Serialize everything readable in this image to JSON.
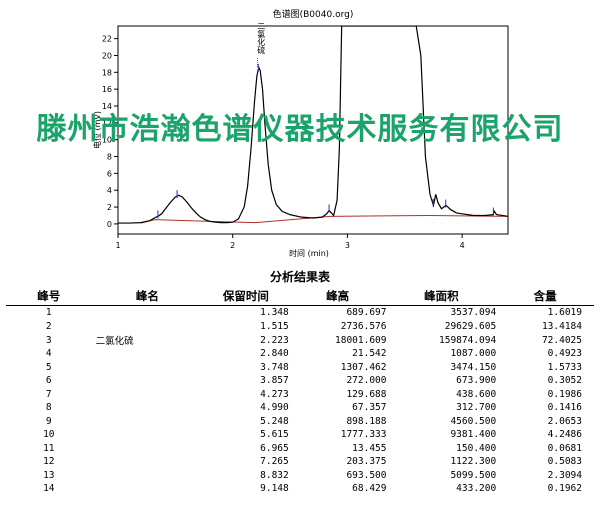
{
  "chart_data": {
    "type": "line",
    "title": "色谱图(B0040.org)",
    "xlabel": "时间 (min)",
    "ylabel": "电位 (mV)",
    "xlim": [
      1.0,
      4.4
    ],
    "ylim": [
      -1.2,
      23.5
    ],
    "xticks": [
      1,
      2,
      3,
      4
    ],
    "yticks": [
      0,
      2,
      4,
      6,
      8,
      10,
      12,
      14,
      16,
      18,
      20,
      22
    ],
    "grid": false,
    "series": [
      {
        "x": [
          1.0,
          1.1,
          1.2,
          1.28,
          1.33,
          1.35,
          1.38,
          1.42,
          1.46,
          1.5,
          1.53,
          1.56,
          1.6,
          1.64,
          1.68,
          1.72,
          1.76,
          1.8,
          1.85,
          1.9,
          1.95,
          2.0,
          2.05,
          2.1,
          2.13,
          2.16,
          2.19,
          2.21,
          2.22,
          2.23,
          2.24,
          2.26,
          2.28,
          2.31,
          2.34,
          2.38,
          2.43,
          2.5,
          2.6,
          2.7,
          2.78,
          2.82,
          2.84,
          2.86,
          2.88,
          2.91,
          2.93,
          2.95,
          3.0,
          3.2,
          3.5,
          3.6,
          3.64,
          3.68,
          3.72,
          3.75,
          3.77,
          3.79,
          3.82,
          3.86,
          3.9,
          3.95,
          4.0,
          4.1,
          4.2,
          4.27,
          4.28,
          4.3,
          4.4
        ],
        "y": [
          0.1,
          0.1,
          0.15,
          0.4,
          0.8,
          0.9,
          1.2,
          1.9,
          2.6,
          3.2,
          3.4,
          3.2,
          2.6,
          1.9,
          1.3,
          0.8,
          0.5,
          0.3,
          0.2,
          0.15,
          0.15,
          0.2,
          0.6,
          2.0,
          4.5,
          9.0,
          14.5,
          17.5,
          18.2,
          18.5,
          18.2,
          16.0,
          12.0,
          7.0,
          4.0,
          2.3,
          1.5,
          1.1,
          0.8,
          0.7,
          0.8,
          1.2,
          1.6,
          1.3,
          1.0,
          2.8,
          9.0,
          23.5,
          23.5,
          23.5,
          23.5,
          23.5,
          20.0,
          8.0,
          3.5,
          2.2,
          3.5,
          2.5,
          1.8,
          2.2,
          1.7,
          1.3,
          1.2,
          1.0,
          1.0,
          1.1,
          1.5,
          1.1,
          0.9
        ]
      }
    ],
    "baseline": {
      "x": [
        1.2,
        1.32,
        1.8,
        2.2,
        2.85,
        3.72,
        4.4
      ],
      "y": [
        0.1,
        0.5,
        0.3,
        0.15,
        0.9,
        1.0,
        0.9
      ]
    },
    "peak_markers": [
      1.348,
      1.515,
      2.223,
      2.84,
      3.748,
      3.857,
      4.273
    ],
    "annotations": [
      {
        "x": 2.223,
        "label": "二氯化硫"
      }
    ]
  },
  "watermark": "滕州市浩瀚色谱仪器技术服务有限公司",
  "report": {
    "title": "分析结果表",
    "headers": [
      "峰号",
      "峰名",
      "保留时间",
      "峰高",
      "峰面积",
      "含量"
    ],
    "rows": [
      [
        "1",
        "",
        "1.348",
        "689.697",
        "3537.094",
        "1.6019"
      ],
      [
        "2",
        "",
        "1.515",
        "2736.576",
        "29629.605",
        "13.4184"
      ],
      [
        "3",
        "二氯化硫",
        "2.223",
        "18001.609",
        "159874.094",
        "72.4025"
      ],
      [
        "4",
        "",
        "2.840",
        "21.542",
        "1087.000",
        "0.4923"
      ],
      [
        "5",
        "",
        "3.748",
        "1307.462",
        "3474.150",
        "1.5733"
      ],
      [
        "6",
        "",
        "3.857",
        "272.000",
        "673.900",
        "0.3052"
      ],
      [
        "7",
        "",
        "4.273",
        "129.688",
        "438.600",
        "0.1986"
      ],
      [
        "8",
        "",
        "4.990",
        "67.357",
        "312.700",
        "0.1416"
      ],
      [
        "9",
        "",
        "5.248",
        "898.188",
        "4560.500",
        "2.0653"
      ],
      [
        "10",
        "",
        "5.615",
        "1777.333",
        "9381.400",
        "4.2486"
      ],
      [
        "11",
        "",
        "6.965",
        "13.455",
        "150.400",
        "0.0681"
      ],
      [
        "12",
        "",
        "7.265",
        "203.375",
        "1122.300",
        "0.5083"
      ],
      [
        "13",
        "",
        "8.832",
        "693.500",
        "5099.500",
        "2.3094"
      ],
      [
        "14",
        "",
        "9.148",
        "68.429",
        "433.200",
        "0.1962"
      ]
    ]
  }
}
